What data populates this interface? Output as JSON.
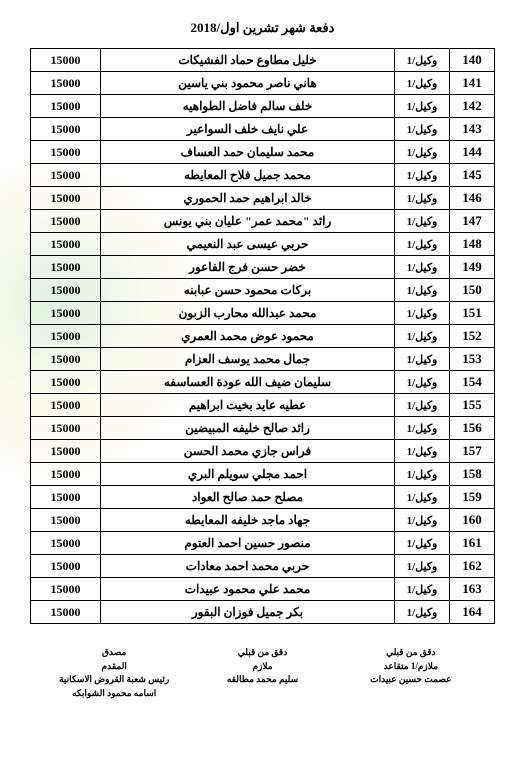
{
  "title": "دفعة شهر تشرين اول/2018",
  "rank_label": "وكيل/1",
  "amount": "15000",
  "rows": [
    {
      "num": "140",
      "name": "خليل مطاوع حماد الفشيكات"
    },
    {
      "num": "141",
      "name": "هاني ناصر محمود بني ياسين"
    },
    {
      "num": "142",
      "name": "خلف سالم فاضل الطواهيه"
    },
    {
      "num": "143",
      "name": "علي نايف خلف السواعير"
    },
    {
      "num": "144",
      "name": "محمد سليمان حمد العساف"
    },
    {
      "num": "145",
      "name": "محمد جميل فلاح المعايطه"
    },
    {
      "num": "146",
      "name": "خالد ابراهيم حمد الحموري"
    },
    {
      "num": "147",
      "name": "رائد \"محمد عمر\" عليان بني يونس"
    },
    {
      "num": "148",
      "name": "حربي عيسى عبد النعيمي"
    },
    {
      "num": "149",
      "name": "خضر حسن فرج الفاعور"
    },
    {
      "num": "150",
      "name": "بركات محمود حسن عبابنه"
    },
    {
      "num": "151",
      "name": "محمد عبدالله محارب الزبون"
    },
    {
      "num": "152",
      "name": "محمود عوض محمد العمري"
    },
    {
      "num": "153",
      "name": "جمال محمد يوسف العزام"
    },
    {
      "num": "154",
      "name": "سليمان ضيف الله عودة العساسفه"
    },
    {
      "num": "155",
      "name": "عطيه عايد بخيت ابراهيم"
    },
    {
      "num": "156",
      "name": "رائد صالح خليفه المبيضين"
    },
    {
      "num": "157",
      "name": "فراس جازي محمد الحسن"
    },
    {
      "num": "158",
      "name": "احمد مجلي سويلم البري"
    },
    {
      "num": "159",
      "name": "مصلح حمد صالح العواد"
    },
    {
      "num": "160",
      "name": "جهاد ماجد خليفه المعايطه"
    },
    {
      "num": "161",
      "name": "منصور حسين احمد العتوم"
    },
    {
      "num": "162",
      "name": "حربي محمد احمد معادات"
    },
    {
      "num": "163",
      "name": "محمد علي محمود عبيدات"
    },
    {
      "num": "164",
      "name": "بكر جميل فوزان البقور"
    }
  ],
  "footer": {
    "right": {
      "l1": "دقق من قبلي",
      "l2": "ملازم/1 متقاعد",
      "l3": "عصمت حسين عبيدات"
    },
    "center": {
      "l1": "دقق من قبلي",
      "l2": "ملازم",
      "l3": "سليم محمد مطالقه"
    },
    "left": {
      "l1": "مصدق",
      "l2": "المقدم",
      "l3": "رئيس شعبة القروض الاسكانية",
      "l4": "اسامه محمود الشوابكه"
    }
  },
  "colors": {
    "border": "#000000",
    "text": "#000000",
    "background": "#ffffff"
  }
}
